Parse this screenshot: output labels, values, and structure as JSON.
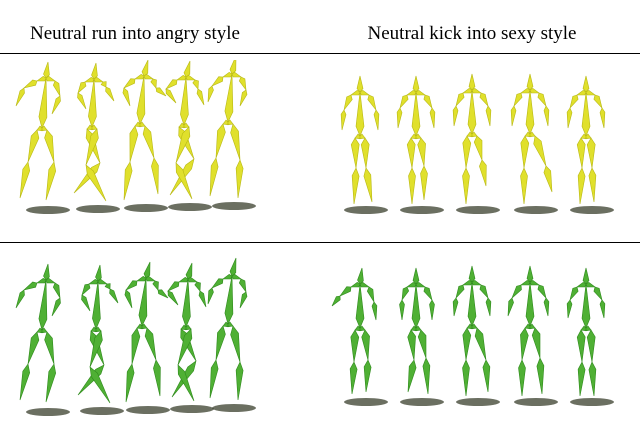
{
  "headings": {
    "left": "Neutral run into angry style",
    "right": "Neutral kick into sexy style"
  },
  "colors": {
    "top_bone": "#e0e02c",
    "top_joint": "#b8b814",
    "bottom_bone": "#4fb034",
    "bottom_joint": "#2f8a1c",
    "shadow": "#3a3f2c"
  },
  "panels": [
    {
      "row": "top",
      "motion": "run"
    },
    {
      "row": "top",
      "motion": "kick"
    },
    {
      "row": "bottom",
      "motion": "run"
    },
    {
      "row": "bottom",
      "motion": "kick"
    }
  ]
}
